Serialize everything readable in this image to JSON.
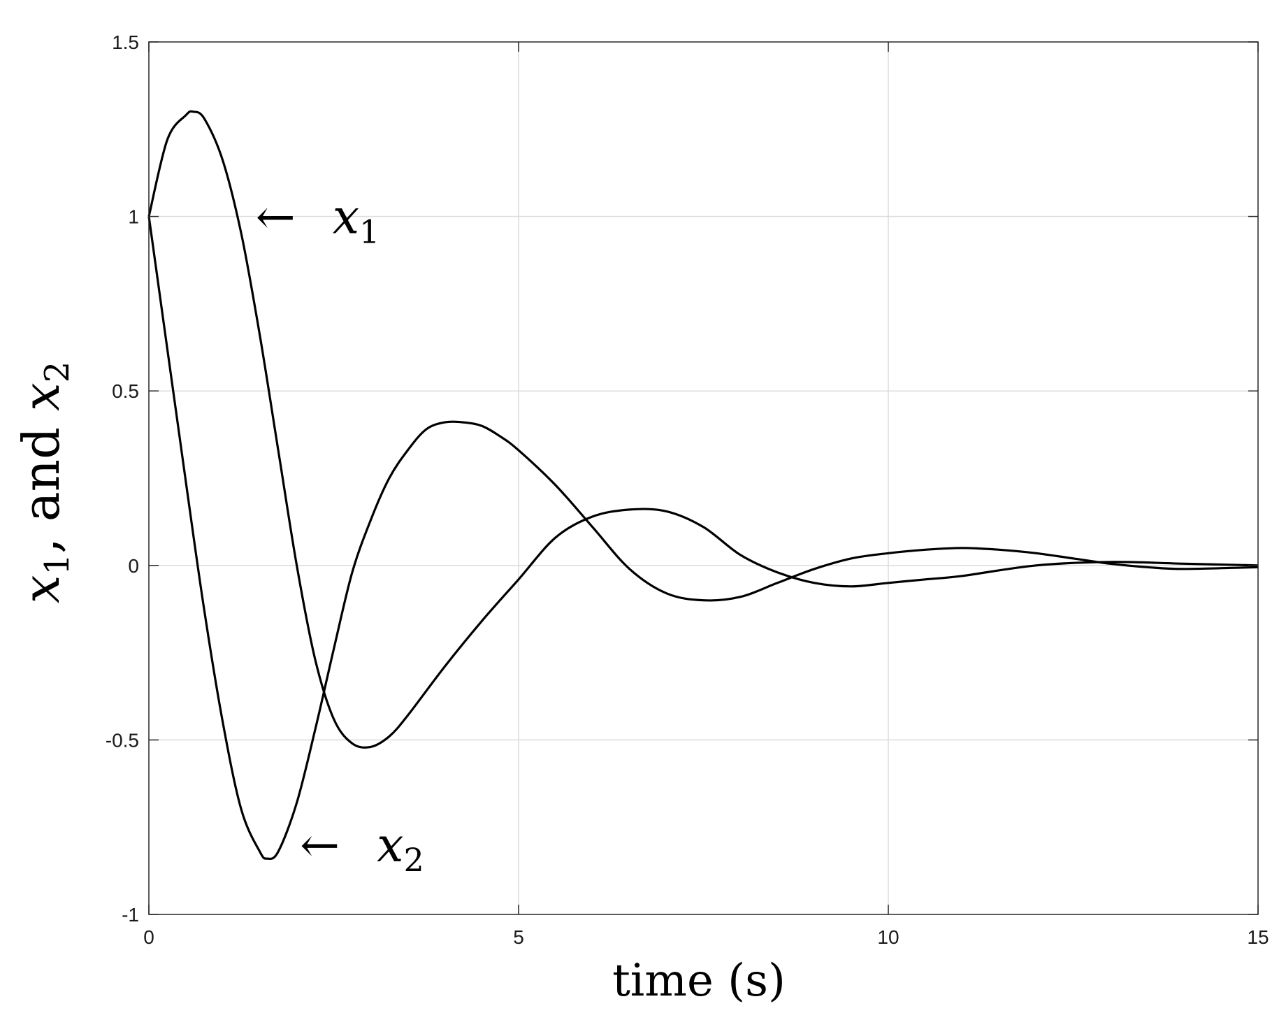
{
  "chart_data": {
    "type": "line",
    "xlabel": "time (s)",
    "ylabel": {
      "var1": "x",
      "sub1": "1",
      "mid": ", and ",
      "var2": "x",
      "sub2": "2"
    },
    "xlim": [
      0,
      15
    ],
    "ylim": [
      -1,
      1.5
    ],
    "xticks": [
      0,
      5,
      10,
      15
    ],
    "xtick_labels": [
      "0",
      "5",
      "10",
      "15"
    ],
    "yticks": [
      -1,
      -0.5,
      0,
      0.5,
      1,
      1.5
    ],
    "ytick_labels": [
      "-1",
      "-0.5",
      "0",
      "0.5",
      "1",
      "1.5"
    ],
    "grid": true,
    "colors": {
      "line": "#000000",
      "grid": "#dcdcdc",
      "axes": "#262626"
    },
    "series": [
      {
        "x": [
          0,
          0.25,
          0.5,
          0.6,
          0.75,
          1.0,
          1.25,
          1.5,
          1.75,
          2.0,
          2.25,
          2.5,
          2.75,
          3.0,
          3.25,
          3.5,
          4.0,
          4.5,
          5.0,
          5.5,
          6.0,
          6.5,
          7.0,
          7.5,
          8.0,
          8.5,
          9.0,
          9.5,
          10.0,
          10.5,
          11.0,
          12.0,
          13.0,
          14.0,
          15.0
        ],
        "values": [
          1.0,
          1.22,
          1.29,
          1.3,
          1.28,
          1.16,
          0.95,
          0.66,
          0.33,
          0.0,
          -0.27,
          -0.44,
          -0.51,
          -0.52,
          -0.49,
          -0.43,
          -0.29,
          -0.16,
          -0.04,
          0.08,
          0.14,
          0.16,
          0.155,
          0.11,
          0.03,
          -0.02,
          -0.05,
          -0.06,
          -0.05,
          -0.04,
          -0.03,
          0.0,
          0.01,
          0.005,
          0.0
        ]
      },
      {
        "x": [
          0,
          0.25,
          0.5,
          0.75,
          1.0,
          1.25,
          1.5,
          1.6,
          1.75,
          2.0,
          2.25,
          2.5,
          2.75,
          3.0,
          3.25,
          3.5,
          3.75,
          4.0,
          4.25,
          4.5,
          4.75,
          5.0,
          5.5,
          6.0,
          6.5,
          7.0,
          7.5,
          8.0,
          8.5,
          9.0,
          9.5,
          10.0,
          10.5,
          11.0,
          11.5,
          12.0,
          12.5,
          13.0,
          13.5,
          14.0,
          15.0
        ],
        "values": [
          1.0,
          0.62,
          0.24,
          -0.13,
          -0.45,
          -0.7,
          -0.82,
          -0.84,
          -0.82,
          -0.68,
          -0.47,
          -0.24,
          -0.02,
          0.13,
          0.25,
          0.33,
          0.39,
          0.41,
          0.41,
          0.4,
          0.37,
          0.33,
          0.23,
          0.11,
          -0.01,
          -0.08,
          -0.1,
          -0.09,
          -0.05,
          -0.01,
          0.02,
          0.035,
          0.045,
          0.05,
          0.045,
          0.035,
          0.02,
          0.005,
          -0.005,
          -0.01,
          -0.005
        ]
      }
    ],
    "annotations": [
      {
        "arrow": "←",
        "var": "x",
        "sub": "1",
        "x": 1.5,
        "y": 1.0
      },
      {
        "arrow": "←",
        "var": "x",
        "sub": "2",
        "x": 2.1,
        "y": -0.8
      }
    ]
  }
}
